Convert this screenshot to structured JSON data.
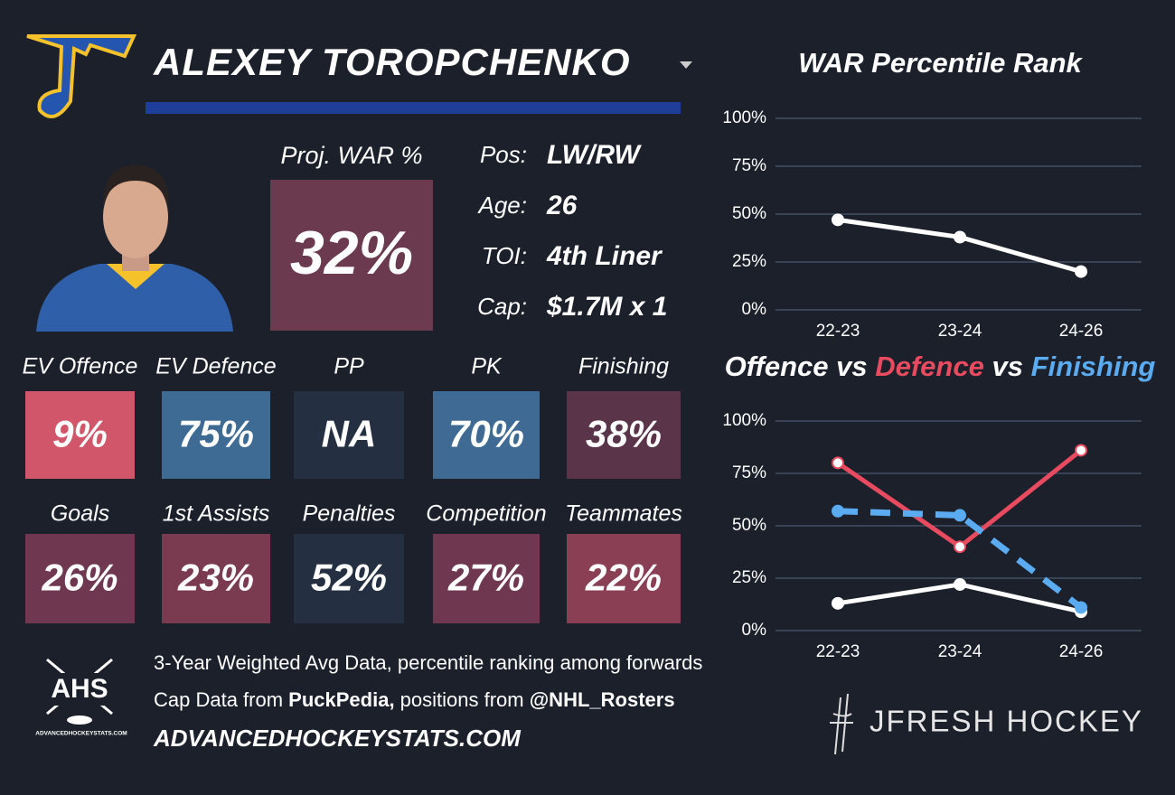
{
  "header": {
    "player_name": "ALEXEY TOROPCHENKO"
  },
  "projection": {
    "label": "Proj. WAR %",
    "value": "32%",
    "color": "#6b3a4e"
  },
  "bio": [
    {
      "label": "Pos:",
      "value": "LW/RW"
    },
    {
      "label": "Age:",
      "value": "26"
    },
    {
      "label": "TOI:",
      "value": "4th Liner"
    },
    {
      "label": "Cap:",
      "value": "$1.7M x 1"
    }
  ],
  "tiles": [
    [
      {
        "label": "EV Offence",
        "value": "9%",
        "color": "#d1566a"
      },
      {
        "label": "EV Defence",
        "value": "75%",
        "color": "#3d6b94"
      },
      {
        "label": "PP",
        "value": "NA",
        "color": "#243041"
      },
      {
        "label": "PK",
        "value": "70%",
        "color": "#3e6a93"
      },
      {
        "label": "Finishing",
        "value": "38%",
        "color": "#5a3449"
      }
    ],
    [
      {
        "label": "Goals",
        "value": "26%",
        "color": "#6f3850"
      },
      {
        "label": "1st Assists",
        "value": "23%",
        "color": "#7a3a50"
      },
      {
        "label": "Penalties",
        "value": "52%",
        "color": "#243041"
      },
      {
        "label": "Competition",
        "value": "27%",
        "color": "#6f3850"
      },
      {
        "label": "Teammates",
        "value": "22%",
        "color": "#8a3f55"
      }
    ]
  ],
  "footer": {
    "line1": "3-Year Weighted Avg Data, percentile ranking among forwards",
    "line2": [
      "Cap Data from ",
      "PuckPedia,",
      " positions from ",
      "@NHL_Rosters"
    ],
    "site": "ADVANCEDHOCKEYSTATS.COM"
  },
  "logos": {
    "ahs": "AHS",
    "ahs_caption": "ADVANCEDHOCKEYSTATS.COM",
    "brand": "JFRESH HOCKEY"
  },
  "chart_data": [
    {
      "type": "line",
      "title": "WAR Percentile Rank",
      "categories": [
        "22-23",
        "23-24",
        "24-26"
      ],
      "series": [
        {
          "name": null,
          "color": "#ffffff",
          "values": [
            47,
            38,
            20
          ]
        }
      ],
      "ylim": [
        0,
        100
      ],
      "yticks": [
        {
          "value": 0,
          "label": "0%"
        },
        {
          "value": 25,
          "label": "25%"
        },
        {
          "value": 50,
          "label": "50%"
        },
        {
          "value": 75,
          "label": "75%"
        },
        {
          "value": 100,
          "label": "100%"
        }
      ],
      "grid": true
    },
    {
      "type": "line",
      "title_joiner": "vs",
      "categories": [
        "22-23",
        "23-24",
        "24-26"
      ],
      "series": [
        {
          "name": "Offence",
          "color": "#ffffff",
          "values": [
            13,
            22,
            9
          ]
        },
        {
          "name": "Defence",
          "color": "#e84a5f",
          "values": [
            80,
            40,
            86
          ]
        },
        {
          "name": "Finishing",
          "color": "#5aabf0",
          "dashed": true,
          "values": [
            57,
            55,
            11
          ]
        }
      ],
      "ylim": [
        0,
        100
      ],
      "yticks": [
        {
          "value": 0,
          "label": "0%"
        },
        {
          "value": 25,
          "label": "25%"
        },
        {
          "value": 50,
          "label": "50%"
        },
        {
          "value": 75,
          "label": "75%"
        },
        {
          "value": 100,
          "label": "100%"
        }
      ],
      "grid": true
    }
  ]
}
